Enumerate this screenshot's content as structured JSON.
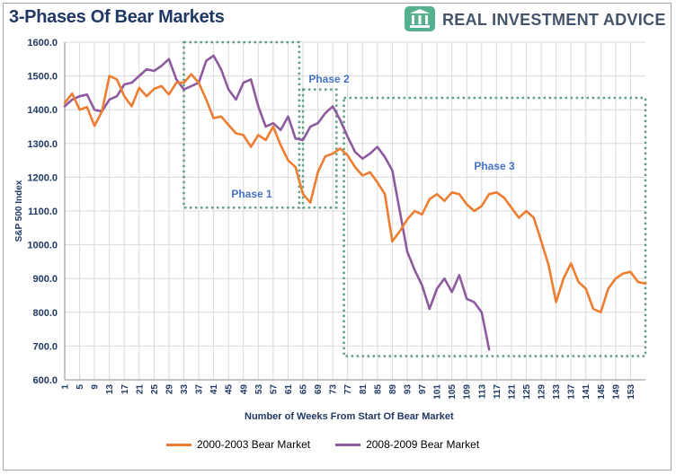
{
  "header": {
    "title": "3-Phases Of Bear Markets",
    "brand": "REAL INVESTMENT ADVICE"
  },
  "colors": {
    "series_2000": "#ed7d31",
    "series_2008": "#8e5a9e",
    "phase_box": "#5f9e83",
    "phase_label": "#4472c4",
    "axis_text": "#1f3864",
    "grid": "#d9d9d9",
    "brand_green": "#55b08d"
  },
  "chart_data": {
    "type": "line",
    "title": "3-Phases Of Bear Markets",
    "xlabel": "Number of Weeks From Start Of Bear Market",
    "ylabel": "S&P 500 Index",
    "ylim": [
      600,
      1600
    ],
    "xlim": [
      1,
      157
    ],
    "yticks": [
      600,
      700,
      800,
      900,
      1000,
      1100,
      1200,
      1300,
      1400,
      1500,
      1600
    ],
    "ytick_labels": [
      "600.0",
      "700.0",
      "800.0",
      "900.0",
      "1000.0",
      "1100.0",
      "1200.0",
      "1300.0",
      "1400.0",
      "1500.0",
      "1600.0"
    ],
    "xticks": [
      1,
      5,
      9,
      13,
      17,
      21,
      25,
      29,
      33,
      37,
      41,
      45,
      49,
      53,
      57,
      61,
      65,
      69,
      73,
      77,
      81,
      85,
      89,
      93,
      97,
      101,
      105,
      109,
      113,
      117,
      121,
      125,
      129,
      133,
      137,
      141,
      145,
      149,
      153
    ],
    "grid": true,
    "series": [
      {
        "name": "2000-2003 Bear Market",
        "color_key": "series_2000",
        "points": [
          [
            1,
            1420
          ],
          [
            3,
            1448
          ],
          [
            5,
            1400
          ],
          [
            7,
            1408
          ],
          [
            9,
            1352
          ],
          [
            11,
            1395
          ],
          [
            13,
            1500
          ],
          [
            15,
            1490
          ],
          [
            17,
            1440
          ],
          [
            19,
            1410
          ],
          [
            21,
            1465
          ],
          [
            23,
            1440
          ],
          [
            25,
            1462
          ],
          [
            27,
            1470
          ],
          [
            29,
            1445
          ],
          [
            31,
            1480
          ],
          [
            33,
            1480
          ],
          [
            35,
            1505
          ],
          [
            37,
            1480
          ],
          [
            39,
            1430
          ],
          [
            41,
            1375
          ],
          [
            43,
            1380
          ],
          [
            45,
            1355
          ],
          [
            47,
            1330
          ],
          [
            49,
            1325
          ],
          [
            51,
            1290
          ],
          [
            53,
            1325
          ],
          [
            55,
            1310
          ],
          [
            57,
            1350
          ],
          [
            59,
            1295
          ],
          [
            61,
            1250
          ],
          [
            63,
            1230
          ],
          [
            65,
            1150
          ],
          [
            67,
            1125
          ],
          [
            69,
            1215
          ],
          [
            71,
            1262
          ],
          [
            73,
            1270
          ],
          [
            75,
            1285
          ],
          [
            77,
            1265
          ],
          [
            79,
            1230
          ],
          [
            81,
            1205
          ],
          [
            83,
            1215
          ],
          [
            85,
            1185
          ],
          [
            87,
            1150
          ],
          [
            89,
            1010
          ],
          [
            91,
            1040
          ],
          [
            93,
            1075
          ],
          [
            95,
            1100
          ],
          [
            97,
            1090
          ],
          [
            99,
            1135
          ],
          [
            101,
            1150
          ],
          [
            103,
            1130
          ],
          [
            105,
            1155
          ],
          [
            107,
            1150
          ],
          [
            109,
            1120
          ],
          [
            111,
            1100
          ],
          [
            113,
            1115
          ],
          [
            115,
            1150
          ],
          [
            117,
            1155
          ],
          [
            119,
            1140
          ],
          [
            121,
            1110
          ],
          [
            123,
            1080
          ],
          [
            125,
            1100
          ],
          [
            127,
            1080
          ],
          [
            129,
            1010
          ],
          [
            131,
            940
          ],
          [
            133,
            830
          ],
          [
            135,
            900
          ],
          [
            137,
            945
          ],
          [
            139,
            890
          ],
          [
            141,
            870
          ],
          [
            143,
            810
          ],
          [
            145,
            800
          ],
          [
            147,
            870
          ],
          [
            149,
            900
          ],
          [
            151,
            915
          ],
          [
            153,
            920
          ],
          [
            155,
            890
          ],
          [
            157,
            885
          ]
        ]
      },
      {
        "name": "2008-2009 Bear Market",
        "color_key": "series_2008",
        "points": [
          [
            1,
            1410
          ],
          [
            3,
            1430
          ],
          [
            5,
            1440
          ],
          [
            7,
            1445
          ],
          [
            9,
            1400
          ],
          [
            11,
            1395
          ],
          [
            13,
            1430
          ],
          [
            15,
            1440
          ],
          [
            17,
            1475
          ],
          [
            19,
            1480
          ],
          [
            21,
            1500
          ],
          [
            23,
            1520
          ],
          [
            25,
            1515
          ],
          [
            27,
            1530
          ],
          [
            29,
            1550
          ],
          [
            31,
            1490
          ],
          [
            33,
            1460
          ],
          [
            35,
            1470
          ],
          [
            37,
            1480
          ],
          [
            39,
            1545
          ],
          [
            41,
            1560
          ],
          [
            43,
            1520
          ],
          [
            45,
            1460
          ],
          [
            47,
            1430
          ],
          [
            49,
            1480
          ],
          [
            51,
            1490
          ],
          [
            53,
            1410
          ],
          [
            55,
            1350
          ],
          [
            57,
            1360
          ],
          [
            59,
            1340
          ],
          [
            61,
            1380
          ],
          [
            63,
            1315
          ],
          [
            65,
            1310
          ],
          [
            67,
            1350
          ],
          [
            69,
            1360
          ],
          [
            71,
            1390
          ],
          [
            73,
            1410
          ],
          [
            75,
            1370
          ],
          [
            77,
            1320
          ],
          [
            79,
            1275
          ],
          [
            81,
            1255
          ],
          [
            83,
            1270
          ],
          [
            85,
            1290
          ],
          [
            87,
            1260
          ],
          [
            89,
            1220
          ],
          [
            91,
            1100
          ],
          [
            93,
            980
          ],
          [
            95,
            925
          ],
          [
            97,
            880
          ],
          [
            99,
            810
          ],
          [
            101,
            870
          ],
          [
            103,
            900
          ],
          [
            105,
            860
          ],
          [
            107,
            910
          ],
          [
            109,
            840
          ],
          [
            111,
            830
          ],
          [
            113,
            800
          ],
          [
            115,
            690
          ]
        ]
      }
    ],
    "annotations": [
      {
        "text": "Phase 1",
        "x0": 33,
        "x1": 64,
        "y0": 1110,
        "y1": 1600
      },
      {
        "text": "Phase 2",
        "x0": 65,
        "x1": 74,
        "y0": 1110,
        "y1": 1460
      },
      {
        "text": "Phase 3",
        "x0": 76,
        "x1": 157,
        "y0": 670,
        "y1": 1435
      }
    ],
    "legend": "bottom"
  }
}
